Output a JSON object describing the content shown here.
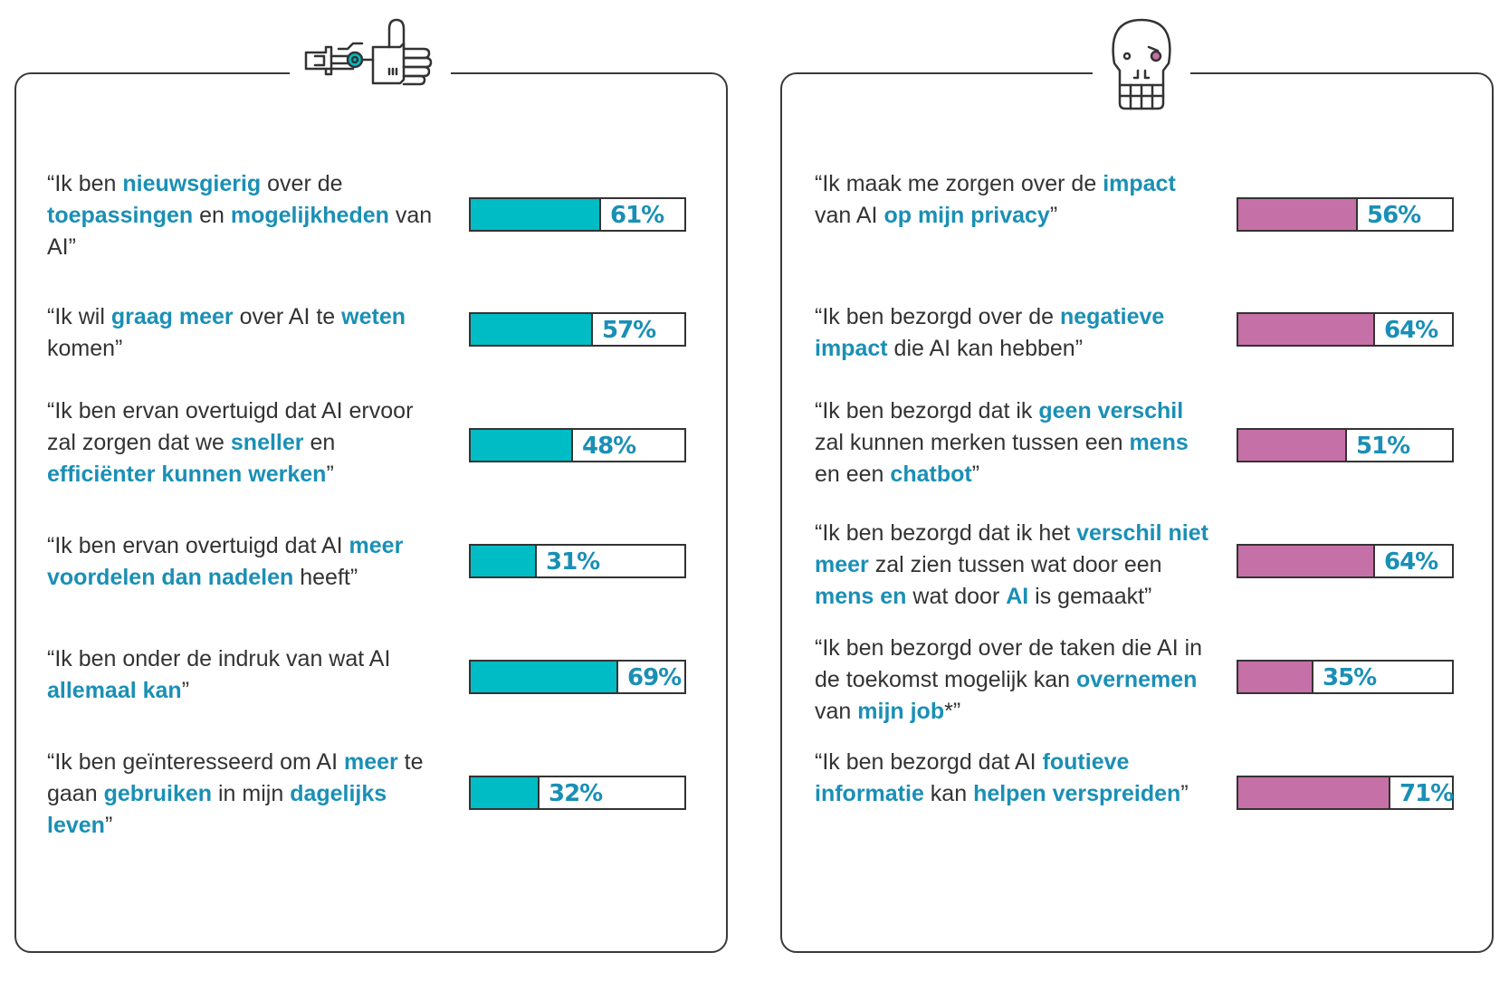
{
  "colors": {
    "accent_text": "#1a8fb6",
    "left_bar": "#00bcc4",
    "right_bar": "#c670a8",
    "border": "#333333"
  },
  "chart_data": [
    {
      "type": "bar",
      "orientation": "horizontal",
      "title": "",
      "icon": "robot-hand-icon",
      "color": "#00bcc4",
      "unit": "%",
      "xlim": [
        0,
        100
      ],
      "rows": [
        {
          "segments": [
            {
              "t": "“Ik ben "
            },
            {
              "t": "nieuwsgierig",
              "b": 1
            },
            {
              "t": " over de "
            },
            {
              "t": "toepassingen",
              "b": 1
            },
            {
              "t": " en "
            },
            {
              "t": "mogelijkheden",
              "b": 1
            },
            {
              "t": " van AI”"
            }
          ],
          "value": 61,
          "label": "61%"
        },
        {
          "segments": [
            {
              "t": "“Ik wil "
            },
            {
              "t": "graag meer",
              "b": 1
            },
            {
              "t": " over AI te "
            },
            {
              "t": "weten",
              "b": 1
            },
            {
              "t": " komen”"
            }
          ],
          "value": 57,
          "label": "57%"
        },
        {
          "segments": [
            {
              "t": "“Ik ben ervan overtuigd dat AI ervoor zal zorgen dat we "
            },
            {
              "t": "sneller",
              "b": 1
            },
            {
              "t": " en "
            },
            {
              "t": "efficiënter kunnen werken",
              "b": 1
            },
            {
              "t": "”"
            }
          ],
          "value": 48,
          "label": "48%"
        },
        {
          "segments": [
            {
              "t": "“Ik ben ervan overtuigd dat AI "
            },
            {
              "t": "meer voordelen dan nadelen",
              "b": 1
            },
            {
              "t": " heeft”"
            }
          ],
          "value": 31,
          "label": "31%"
        },
        {
          "segments": [
            {
              "t": "“Ik ben onder de indruk van wat AI "
            },
            {
              "t": "allemaal kan",
              "b": 1
            },
            {
              "t": "”"
            }
          ],
          "value": 69,
          "label": "69%"
        },
        {
          "segments": [
            {
              "t": "“Ik ben geïnteresseerd om AI "
            },
            {
              "t": "meer",
              "b": 1
            },
            {
              "t": " te gaan "
            },
            {
              "t": "gebruiken",
              "b": 1
            },
            {
              "t": " in mijn "
            },
            {
              "t": "dagelijks leven",
              "b": 1
            },
            {
              "t": "”"
            }
          ],
          "value": 32,
          "label": "32%"
        }
      ]
    },
    {
      "type": "bar",
      "orientation": "horizontal",
      "title": "",
      "icon": "skull-icon",
      "color": "#c670a8",
      "unit": "%",
      "xlim": [
        0,
        100
      ],
      "rows": [
        {
          "segments": [
            {
              "t": "“Ik maak me zorgen over de "
            },
            {
              "t": "impact",
              "b": 1
            },
            {
              "t": " van AI "
            },
            {
              "t": "op mijn privacy",
              "b": 1
            },
            {
              "t": "”"
            }
          ],
          "value": 56,
          "label": "56%"
        },
        {
          "segments": [
            {
              "t": "“Ik ben bezorgd over de "
            },
            {
              "t": "negatieve impact",
              "b": 1
            },
            {
              "t": " die AI kan hebben”"
            }
          ],
          "value": 64,
          "label": "64%"
        },
        {
          "segments": [
            {
              "t": "“Ik ben bezorgd dat ik "
            },
            {
              "t": "geen verschil",
              "b": 1
            },
            {
              "t": " zal kunnen merken tussen een "
            },
            {
              "t": "mens",
              "b": 1
            },
            {
              "t": " en een "
            },
            {
              "t": "chatbot",
              "b": 1
            },
            {
              "t": "”"
            }
          ],
          "value": 51,
          "label": "51%"
        },
        {
          "segments": [
            {
              "t": "“Ik ben bezorgd dat ik het "
            },
            {
              "t": "verschil niet meer",
              "b": 1
            },
            {
              "t": " zal zien tussen wat door een "
            },
            {
              "t": "mens en",
              "b": 1
            },
            {
              "t": " wat door "
            },
            {
              "t": "AI",
              "b": 1
            },
            {
              "t": " is gemaakt”"
            }
          ],
          "value": 64,
          "label": "64%"
        },
        {
          "segments": [
            {
              "t": "“Ik ben bezorgd over de taken die AI in de toekomst mogelijk kan "
            },
            {
              "t": "overnemen",
              "b": 1
            },
            {
              "t": " van "
            },
            {
              "t": "mijn job",
              "b": 1
            },
            {
              "t": "*”"
            }
          ],
          "value": 35,
          "label": "35%"
        },
        {
          "segments": [
            {
              "t": "“Ik ben bezorgd dat AI "
            },
            {
              "t": "foutieve informatie",
              "b": 1
            },
            {
              "t": " kan "
            },
            {
              "t": "helpen verspreiden",
              "b": 1
            },
            {
              "t": "”"
            }
          ],
          "value": 71,
          "label": "71%"
        }
      ]
    }
  ]
}
